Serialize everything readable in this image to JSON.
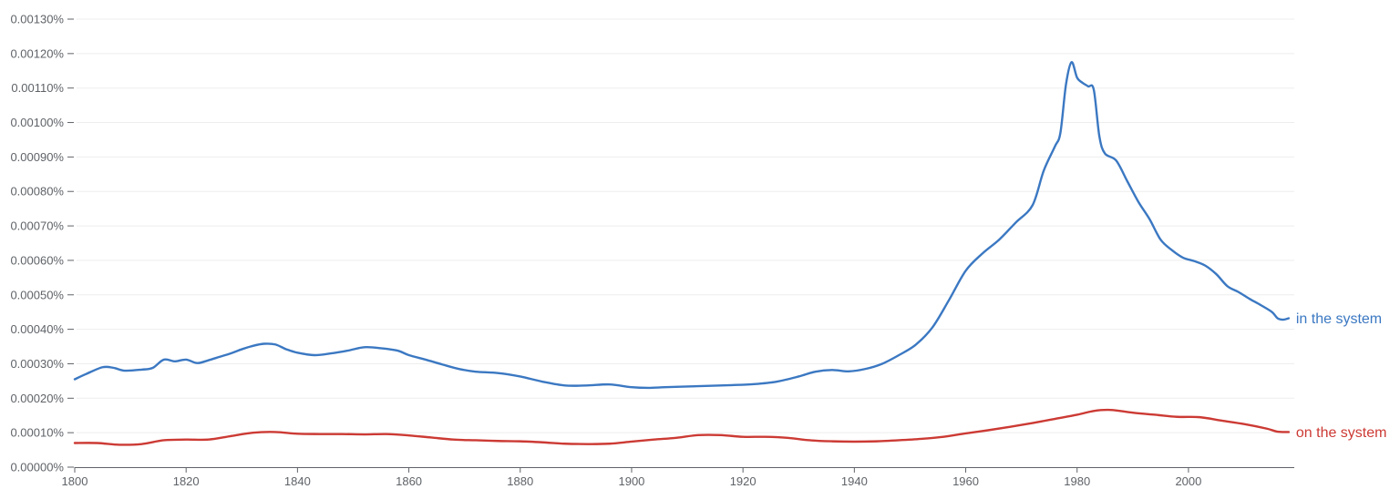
{
  "chart_data": {
    "type": "line",
    "title": "",
    "xlabel": "",
    "ylabel": "",
    "xlim": [
      1800,
      2019
    ],
    "ylim": [
      0,
      0.0013
    ],
    "grid": true,
    "legend": "inline-right",
    "x_ticks": [
      {
        "value": 1800,
        "label": "1800"
      },
      {
        "value": 1820,
        "label": "1820"
      },
      {
        "value": 1840,
        "label": "1840"
      },
      {
        "value": 1860,
        "label": "1860"
      },
      {
        "value": 1880,
        "label": "1880"
      },
      {
        "value": 1900,
        "label": "1900"
      },
      {
        "value": 1920,
        "label": "1920"
      },
      {
        "value": 1940,
        "label": "1940"
      },
      {
        "value": 1960,
        "label": "1960"
      },
      {
        "value": 1980,
        "label": "1980"
      },
      {
        "value": 2000,
        "label": "2000"
      }
    ],
    "y_ticks": [
      {
        "value": 0,
        "label": "0.00000%"
      },
      {
        "value": 0.0001,
        "label": "0.00010%"
      },
      {
        "value": 0.0002,
        "label": "0.00020%"
      },
      {
        "value": 0.0003,
        "label": "0.00030%"
      },
      {
        "value": 0.0004,
        "label": "0.00040%"
      },
      {
        "value": 0.0005,
        "label": "0.00050%"
      },
      {
        "value": 0.0006,
        "label": "0.00060%"
      },
      {
        "value": 0.0007,
        "label": "0.00070%"
      },
      {
        "value": 0.0008,
        "label": "0.00080%"
      },
      {
        "value": 0.0009,
        "label": "0.00090%"
      },
      {
        "value": 0.001,
        "label": "0.00100%"
      },
      {
        "value": 0.0011,
        "label": "0.00110%"
      },
      {
        "value": 0.0012,
        "label": "0.00120%"
      },
      {
        "value": 0.0013,
        "label": "0.00130%"
      }
    ],
    "series": [
      {
        "name": "in the system",
        "color": "#3b78c2",
        "points": [
          [
            1800,
            0.000255
          ],
          [
            1802,
            0.00027
          ],
          [
            1805,
            0.00029
          ],
          [
            1807,
            0.000288
          ],
          [
            1809,
            0.00028
          ],
          [
            1812,
            0.000283
          ],
          [
            1814,
            0.000288
          ],
          [
            1816,
            0.000312
          ],
          [
            1818,
            0.000307
          ],
          [
            1820,
            0.000312
          ],
          [
            1822,
            0.000302
          ],
          [
            1824,
            0.00031
          ],
          [
            1826,
            0.00032
          ],
          [
            1828,
            0.00033
          ],
          [
            1830,
            0.000342
          ],
          [
            1832,
            0.000352
          ],
          [
            1834,
            0.000358
          ],
          [
            1836,
            0.000356
          ],
          [
            1838,
            0.000342
          ],
          [
            1840,
            0.000332
          ],
          [
            1843,
            0.000325
          ],
          [
            1846,
            0.00033
          ],
          [
            1849,
            0.000338
          ],
          [
            1852,
            0.000348
          ],
          [
            1855,
            0.000345
          ],
          [
            1858,
            0.000338
          ],
          [
            1860,
            0.000325
          ],
          [
            1863,
            0.000312
          ],
          [
            1866,
            0.000298
          ],
          [
            1869,
            0.000285
          ],
          [
            1872,
            0.000277
          ],
          [
            1876,
            0.000273
          ],
          [
            1880,
            0.000263
          ],
          [
            1884,
            0.000248
          ],
          [
            1888,
            0.000237
          ],
          [
            1892,
            0.000237
          ],
          [
            1896,
            0.00024
          ],
          [
            1900,
            0.000232
          ],
          [
            1903,
            0.00023
          ],
          [
            1906,
            0.000232
          ],
          [
            1910,
            0.000234
          ],
          [
            1914,
            0.000236
          ],
          [
            1918,
            0.000238
          ],
          [
            1922,
            0.000241
          ],
          [
            1926,
            0.000248
          ],
          [
            1930,
            0.000263
          ],
          [
            1933,
            0.000277
          ],
          [
            1936,
            0.000282
          ],
          [
            1939,
            0.000278
          ],
          [
            1942,
            0.000285
          ],
          [
            1945,
            0.0003
          ],
          [
            1948,
            0.000325
          ],
          [
            1951,
            0.000355
          ],
          [
            1954,
            0.000405
          ],
          [
            1957,
            0.000485
          ],
          [
            1960,
            0.00057
          ],
          [
            1963,
            0.00062
          ],
          [
            1966,
            0.00066
          ],
          [
            1969,
            0.00071
          ],
          [
            1972,
            0.00076
          ],
          [
            1974,
            0.00086
          ],
          [
            1976,
            0.00093
          ],
          [
            1977,
            0.00097
          ],
          [
            1978,
            0.00111
          ],
          [
            1979,
            0.001175
          ],
          [
            1980,
            0.00113
          ],
          [
            1981,
            0.001115
          ],
          [
            1982,
            0.001105
          ],
          [
            1983,
            0.001095
          ],
          [
            1984,
            0.00096
          ],
          [
            1985,
            0.00091
          ],
          [
            1987,
            0.00089
          ],
          [
            1989,
            0.00083
          ],
          [
            1991,
            0.00077
          ],
          [
            1993,
            0.00072
          ],
          [
            1995,
            0.00066
          ],
          [
            1997,
            0.00063
          ],
          [
            1999,
            0.000608
          ],
          [
            2001,
            0.000598
          ],
          [
            2003,
            0.000585
          ],
          [
            2005,
            0.00056
          ],
          [
            2007,
            0.000525
          ],
          [
            2009,
            0.000508
          ],
          [
            2011,
            0.000488
          ],
          [
            2013,
            0.00047
          ],
          [
            2015,
            0.00045
          ],
          [
            2016,
            0.000432
          ],
          [
            2017,
            0.000428
          ],
          [
            2018,
            0.000432
          ]
        ]
      },
      {
        "name": "on the system",
        "color": "#cc3a34",
        "points": [
          [
            1800,
            7e-05
          ],
          [
            1804,
            7e-05
          ],
          [
            1808,
            6.5e-05
          ],
          [
            1812,
            6.7e-05
          ],
          [
            1816,
            7.8e-05
          ],
          [
            1820,
            8e-05
          ],
          [
            1824,
            8e-05
          ],
          [
            1828,
            9e-05
          ],
          [
            1832,
            0.0001
          ],
          [
            1836,
            0.000102
          ],
          [
            1840,
            9.7e-05
          ],
          [
            1844,
            9.6e-05
          ],
          [
            1848,
            9.6e-05
          ],
          [
            1852,
            9.5e-05
          ],
          [
            1856,
            9.6e-05
          ],
          [
            1860,
            9.2e-05
          ],
          [
            1864,
            8.6e-05
          ],
          [
            1868,
            8e-05
          ],
          [
            1872,
            7.8e-05
          ],
          [
            1876,
            7.6e-05
          ],
          [
            1880,
            7.5e-05
          ],
          [
            1884,
            7.2e-05
          ],
          [
            1888,
            6.8e-05
          ],
          [
            1892,
            6.7e-05
          ],
          [
            1896,
            6.8e-05
          ],
          [
            1900,
            7.4e-05
          ],
          [
            1904,
            8e-05
          ],
          [
            1908,
            8.5e-05
          ],
          [
            1912,
            9.3e-05
          ],
          [
            1916,
            9.3e-05
          ],
          [
            1920,
            8.8e-05
          ],
          [
            1924,
            8.8e-05
          ],
          [
            1928,
            8.5e-05
          ],
          [
            1932,
            7.8e-05
          ],
          [
            1936,
            7.5e-05
          ],
          [
            1940,
            7.4e-05
          ],
          [
            1944,
            7.5e-05
          ],
          [
            1948,
            7.8e-05
          ],
          [
            1952,
            8.2e-05
          ],
          [
            1956,
            8.8e-05
          ],
          [
            1960,
            9.8e-05
          ],
          [
            1964,
            0.000107
          ],
          [
            1968,
            0.000117
          ],
          [
            1972,
            0.000128
          ],
          [
            1976,
            0.00014
          ],
          [
            1980,
            0.000152
          ],
          [
            1983,
            0.000163
          ],
          [
            1986,
            0.000166
          ],
          [
            1990,
            0.000158
          ],
          [
            1994,
            0.000152
          ],
          [
            1998,
            0.000146
          ],
          [
            2002,
            0.000145
          ],
          [
            2006,
            0.000135
          ],
          [
            2010,
            0.000125
          ],
          [
            2014,
            0.000112
          ],
          [
            2016,
            0.000103
          ],
          [
            2018,
            0.000102
          ]
        ]
      }
    ]
  }
}
